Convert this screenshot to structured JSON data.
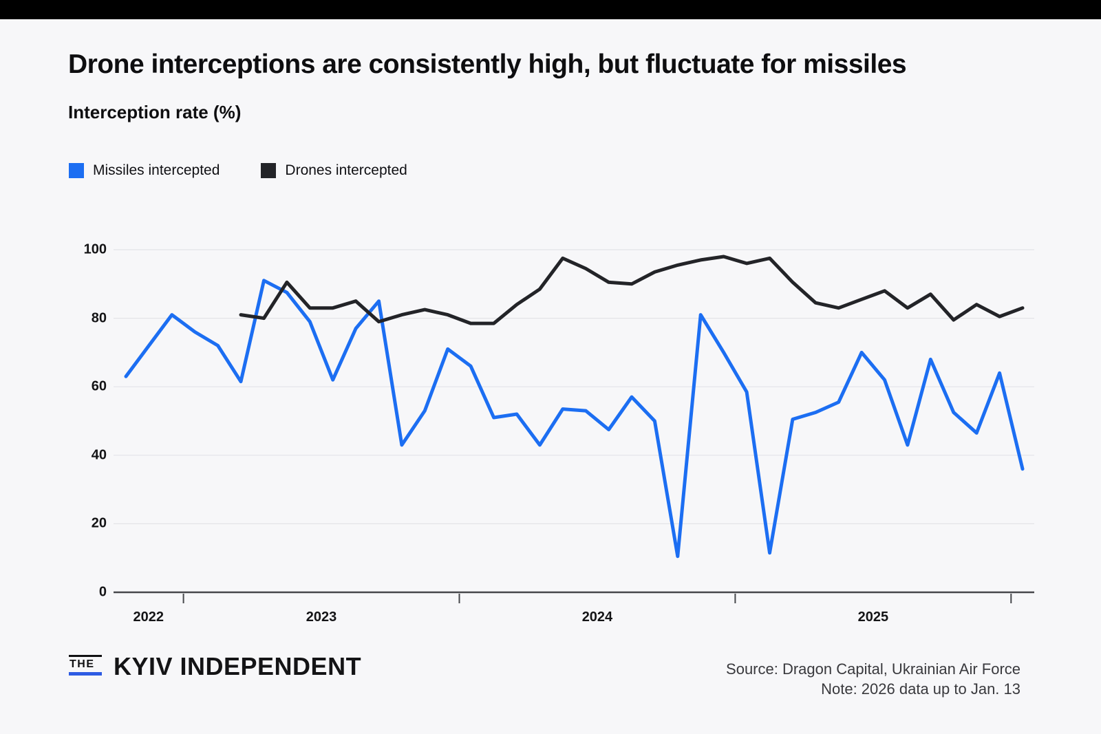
{
  "page": {
    "background": "#f7f7f9",
    "top_bar_color": "#000000"
  },
  "header": {
    "title": "Drone interceptions are consistently high, but fluctuate for missiles",
    "subtitle": "Interception rate (%)"
  },
  "legend": [
    {
      "label": "Missiles intercepted",
      "color": "#1c6ef2"
    },
    {
      "label": "Drones intercepted",
      "color": "#232428"
    }
  ],
  "chart_data": {
    "type": "line",
    "title": "Drone interceptions are consistently high, but fluctuate for missiles",
    "ylabel": "Interception rate (%)",
    "ylim": [
      0,
      100
    ],
    "yticks": [
      0,
      20,
      40,
      60,
      80,
      100
    ],
    "xtick_year_labels": [
      "2022",
      "2023",
      "2024",
      "2025"
    ],
    "grid": "horizontal",
    "legend_position": "top-left",
    "interval": "monthly",
    "series": [
      {
        "name": "Missiles intercepted",
        "color": "#1c6ef2",
        "x_start": "Oct 2022",
        "x_end": "Jan 2026",
        "x_offset_months": 0,
        "values": [
          63,
          72,
          81,
          76,
          72,
          61.5,
          91,
          87.5,
          79,
          62,
          77,
          85,
          43,
          53,
          71,
          66,
          51,
          52,
          43,
          53.5,
          53,
          47.5,
          57,
          50,
          10.5,
          81,
          70,
          58.5,
          11.5,
          50.5,
          52.5,
          55.5,
          70,
          62,
          43,
          68,
          52.5,
          46.5,
          64,
          36
        ]
      },
      {
        "name": "Drones intercepted",
        "color": "#232428",
        "x_start": "Mar 2023",
        "x_end": "Jan 2026",
        "x_offset_months": 5,
        "values": [
          81,
          80,
          90.5,
          83,
          83,
          85,
          79,
          81,
          82.5,
          81,
          78.5,
          78.5,
          84,
          88.5,
          97.5,
          94.5,
          90.5,
          90,
          93.5,
          95.5,
          97,
          98,
          96,
          97.5,
          90.5,
          84.5,
          83,
          85.5,
          88,
          83,
          87,
          79.5,
          84,
          80.5,
          83
        ]
      }
    ]
  },
  "footer": {
    "logo_the": "THE",
    "logo_main": "KYIV INDEPENDENT",
    "logo_accent_color": "#2d5be3",
    "source_line1": "Source: Dragon Capital, Ukrainian Air Force",
    "source_line2": "Note: 2026 data up to Jan. 13"
  }
}
